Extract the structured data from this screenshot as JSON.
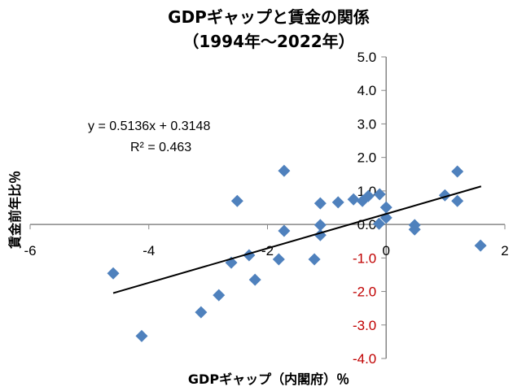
{
  "chart_data": {
    "type": "scatter",
    "title": "GDPギャップと賃金の関係",
    "subtitle": "（1994年～2022年）",
    "xlabel": "GDPギャップ（内閣府）％",
    "ylabel": "賃金前年比％",
    "xlim": [
      -6,
      2
    ],
    "ylim": [
      -4,
      5
    ],
    "x_ticks": [
      "-6",
      "-4",
      "-2",
      "0",
      "2"
    ],
    "y_ticks": [
      "5.0",
      "4.0",
      "3.0",
      "2.0",
      "1.0",
      "0.0",
      "-1.0",
      "-2.0",
      "-3.0",
      "-4.0"
    ],
    "grid": false,
    "marker_color": "#4F81BD",
    "negative_tick_color": "#C00000",
    "points": [
      [
        -4.6,
        -1.46
      ],
      [
        -4.12,
        -3.33
      ],
      [
        -3.12,
        -2.62
      ],
      [
        -2.82,
        -2.11
      ],
      [
        -2.61,
        -1.14
      ],
      [
        -2.51,
        0.7
      ],
      [
        -2.31,
        -0.92
      ],
      [
        -2.21,
        -1.65
      ],
      [
        -1.81,
        -1.04
      ],
      [
        -1.72,
        1.6
      ],
      [
        -1.72,
        -0.19
      ],
      [
        -1.21,
        -1.04
      ],
      [
        -1.11,
        0.63
      ],
      [
        -1.11,
        -0.02
      ],
      [
        -1.11,
        -0.32
      ],
      [
        -0.81,
        0.66
      ],
      [
        -0.4,
        0.7
      ],
      [
        -0.3,
        0.85
      ],
      [
        -0.11,
        0.9
      ],
      [
        0.0,
        0.51
      ],
      [
        -0.12,
        0.02
      ],
      [
        0.0,
        0.2
      ],
      [
        0.48,
        -0.02
      ],
      [
        0.48,
        -0.15
      ],
      [
        0.99,
        0.87
      ],
      [
        1.2,
        1.58
      ],
      [
        1.2,
        0.7
      ],
      [
        1.59,
        -0.63
      ],
      [
        -0.55,
        0.75
      ]
    ],
    "trendline": {
      "slope": 0.5136,
      "intercept": 0.3148,
      "x_range": [
        -4.6,
        1.6
      ]
    },
    "equation": "y = 0.5136x + 0.3148",
    "r_squared": "R² = 0.463"
  }
}
